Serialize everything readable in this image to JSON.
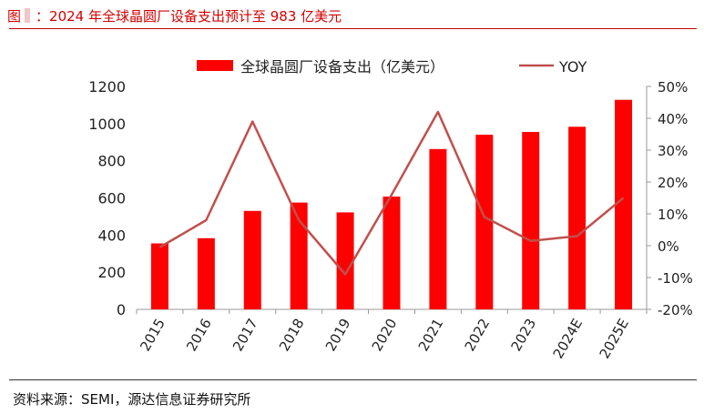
{
  "header": {
    "figure_label": "图",
    "separator": "：",
    "title": "2024 年全球晶圆厂设备支出预计至 983 亿美元"
  },
  "footer": {
    "source": "资料来源：SEMI，源达信息证券研究所"
  },
  "colors": {
    "bar": "#ff0000",
    "line": "#c0504d",
    "title": "#d40000"
  },
  "chart_data": {
    "type": "bar",
    "categories": [
      "2015",
      "2016",
      "2017",
      "2018",
      "2019",
      "2020",
      "2021",
      "2022",
      "2023",
      "2024E",
      "2025E"
    ],
    "series": [
      {
        "name": "全球晶圆厂设备支出（亿美元）",
        "type": "bar",
        "axis": "left",
        "values": [
          355,
          383,
          530,
          575,
          522,
          607,
          863,
          940,
          955,
          983,
          1128
        ]
      },
      {
        "name": "YOY",
        "type": "line",
        "axis": "right",
        "unit": "%",
        "values": [
          -0.5,
          8,
          39,
          8,
          -9,
          16,
          42,
          9,
          1.5,
          3,
          15
        ]
      }
    ],
    "y_left": {
      "min": 0,
      "max": 1200,
      "ticks": [
        "0",
        "200",
        "400",
        "600",
        "800",
        "1000",
        "1200"
      ]
    },
    "y_right": {
      "min": -20,
      "max": 50,
      "ticks": [
        "-20%",
        "-10%",
        "0%",
        "10%",
        "20%",
        "30%",
        "40%",
        "50%"
      ]
    },
    "legend_position": "top-center",
    "grid": false
  }
}
